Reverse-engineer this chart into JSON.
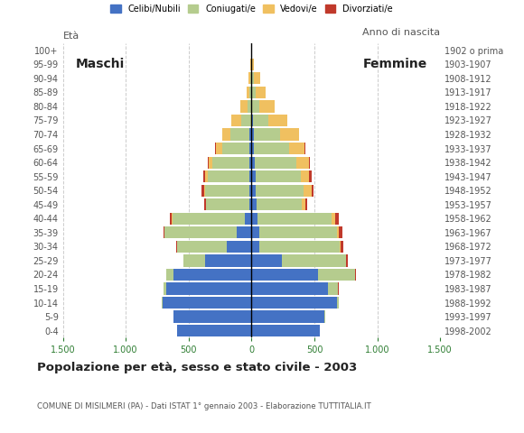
{
  "age_groups": [
    "0-4",
    "5-9",
    "10-14",
    "15-19",
    "20-24",
    "25-29",
    "30-34",
    "35-39",
    "40-44",
    "45-49",
    "50-54",
    "55-59",
    "60-64",
    "65-69",
    "70-74",
    "75-79",
    "80-84",
    "85-89",
    "90-94",
    "95-99",
    "100+"
  ],
  "birth_years": [
    "1998-2002",
    "1993-1997",
    "1988-1992",
    "1983-1987",
    "1978-1982",
    "1973-1977",
    "1968-1972",
    "1963-1967",
    "1958-1962",
    "1953-1957",
    "1948-1952",
    "1943-1947",
    "1938-1942",
    "1933-1937",
    "1928-1932",
    "1923-1927",
    "1918-1922",
    "1913-1917",
    "1908-1912",
    "1903-1907",
    "1902 o prima"
  ],
  "males": {
    "celibe": [
      590,
      620,
      710,
      680,
      620,
      370,
      200,
      120,
      50,
      20,
      20,
      20,
      20,
      15,
      15,
      0,
      0,
      0,
      0,
      0,
      0
    ],
    "coniugato": [
      0,
      0,
      5,
      20,
      55,
      170,
      390,
      570,
      580,
      340,
      350,
      330,
      290,
      220,
      150,
      80,
      30,
      15,
      10,
      5,
      0
    ],
    "vedovo": [
      0,
      0,
      0,
      0,
      0,
      0,
      0,
      2,
      3,
      5,
      10,
      20,
      30,
      50,
      65,
      80,
      60,
      25,
      15,
      5,
      0
    ],
    "divorziato": [
      0,
      0,
      0,
      0,
      3,
      5,
      10,
      10,
      20,
      15,
      15,
      15,
      10,
      5,
      0,
      0,
      0,
      0,
      0,
      0,
      0
    ]
  },
  "females": {
    "nubile": [
      540,
      580,
      680,
      610,
      530,
      240,
      60,
      60,
      50,
      40,
      35,
      30,
      25,
      20,
      20,
      15,
      5,
      5,
      5,
      0,
      0
    ],
    "coniugata": [
      0,
      5,
      15,
      80,
      290,
      510,
      640,
      620,
      590,
      360,
      380,
      360,
      330,
      280,
      210,
      120,
      60,
      30,
      15,
      5,
      2
    ],
    "vedova": [
      0,
      0,
      0,
      0,
      2,
      5,
      10,
      15,
      25,
      30,
      60,
      70,
      100,
      120,
      150,
      150,
      120,
      80,
      50,
      15,
      5
    ],
    "divorziata": [
      0,
      0,
      0,
      2,
      5,
      10,
      20,
      25,
      30,
      15,
      20,
      15,
      10,
      5,
      0,
      0,
      0,
      0,
      0,
      0,
      0
    ]
  },
  "colors": {
    "celibe_nubile": "#4472c4",
    "coniugato": "#b5cc8e",
    "vedovo": "#f0c060",
    "divorziato": "#c0392b"
  },
  "xlim": 1500,
  "title": "Popolazione per età, sesso e stato civile - 2003",
  "subtitle": "COMUNE DI MISILMERI (PA) - Dati ISTAT 1° gennaio 2003 - Elaborazione TUTTITALIA.IT",
  "ylabel_left": "Età",
  "ylabel_right": "Anno di nascita",
  "xtick_vals": [
    -1500,
    -1000,
    -500,
    0,
    500,
    1000,
    1500
  ],
  "xtick_labels": [
    "1.500",
    "1.000",
    "500",
    "0",
    "500",
    "1.000",
    "1.500"
  ],
  "label_maschi": "Maschi",
  "label_femmine": "Femmine",
  "legend_labels": [
    "Celibi/Nubili",
    "Coniugati/e",
    "Vedovi/e",
    "Divorziati/e"
  ],
  "bg_color": "#ffffff",
  "grid_color": "#cccccc",
  "text_color": "#555555",
  "xtick_color": "#2e7d32",
  "bar_height": 0.85
}
